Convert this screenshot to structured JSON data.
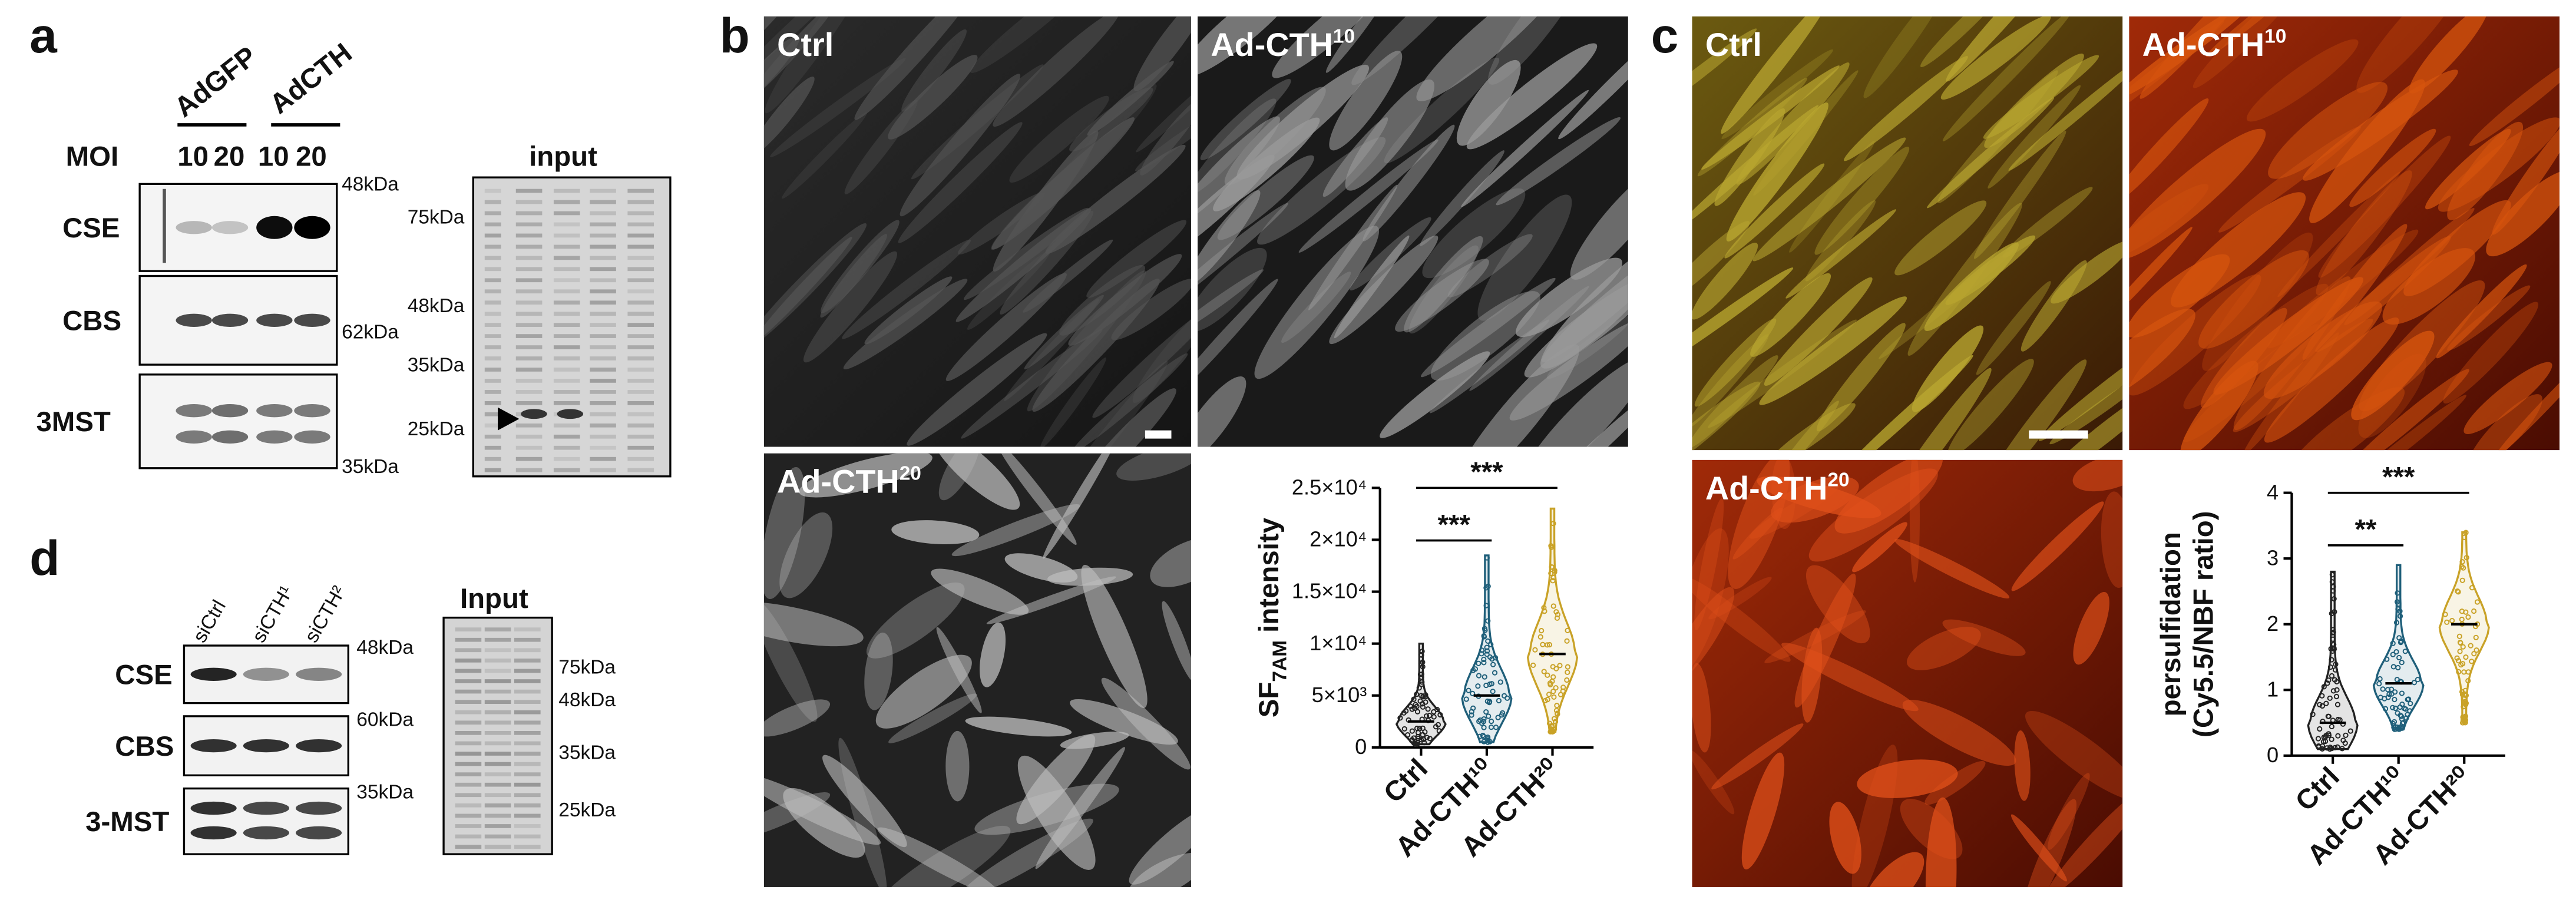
{
  "panels": {
    "a": {
      "label": "a",
      "groups": [
        "AdGFP",
        "AdCTH"
      ],
      "moi_label": "MOI",
      "moi": [
        "10",
        "20",
        "10",
        "20"
      ],
      "blots": [
        {
          "name": "CSE",
          "marker": "48kDa"
        },
        {
          "name": "CBS",
          "marker": "62kDa"
        },
        {
          "name": "3MST",
          "marker": "35kDa"
        }
      ],
      "input_title": "input",
      "input_markers": [
        "75kDa",
        "48kDa",
        "35kDa",
        "25kDa"
      ]
    },
    "b": {
      "label": "b",
      "images": [
        {
          "label": "Ctrl",
          "sup": ""
        },
        {
          "label": "Ad-CTH",
          "sup": "10"
        },
        {
          "label": "Ad-CTH",
          "sup": "20"
        }
      ]
    },
    "c": {
      "label": "c",
      "images": [
        {
          "label": "Ctrl",
          "sup": ""
        },
        {
          "label": "Ad-CTH",
          "sup": "10"
        },
        {
          "label": "Ad-CTH",
          "sup": "20"
        }
      ]
    },
    "d": {
      "label": "d",
      "lanes": [
        "siCtrl",
        "siCTH¹",
        "siCTH²"
      ],
      "blots": [
        {
          "name": "CSE",
          "marker": "48kDa"
        },
        {
          "name": "CBS",
          "marker": "60kDa"
        },
        {
          "name": "3-MST",
          "marker": "35kDa"
        }
      ],
      "input_title": "Input",
      "input_markers": [
        "75kDa",
        "48kDa",
        "35kDa",
        "25kDa"
      ]
    }
  },
  "chart_data": [
    {
      "type": "violin",
      "y_label": "SF",
      "y_label_sub": "7AM",
      "y_label_rest": " intensity",
      "categories": [
        "Ctrl",
        "Ad-CTH¹⁰",
        "Ad-CTH²⁰"
      ],
      "colors": [
        "#222222",
        "#1f5f7a",
        "#c9a227"
      ],
      "min": [
        300,
        500,
        1500
      ],
      "median": [
        2500,
        5000,
        9000
      ],
      "max": [
        10000,
        18500,
        23000
      ],
      "ylim": [
        0,
        25000
      ],
      "yticks": [
        0,
        {
          "value": 5000,
          "label": "5×10³"
        },
        {
          "value": 10000,
          "label": "1×10⁴"
        },
        {
          "value": 15000,
          "label": "1.5×10⁴"
        },
        {
          "value": 20000,
          "label": "2×10⁴"
        },
        {
          "value": 25000,
          "label": "2.5×10⁴"
        }
      ],
      "significance": [
        {
          "text": "***",
          "pair": [
            "Ctrl",
            "Ad-CTH¹⁰"
          ]
        },
        {
          "text": "***",
          "pair": [
            "Ctrl",
            "Ad-CTH²⁰"
          ]
        }
      ]
    },
    {
      "type": "violin",
      "y_label": "persulfidation",
      "y_label_2": "(Cy5.5/NBF ratio)",
      "categories": [
        "Ctrl",
        "Ad-CTH¹⁰",
        "Ad-CTH²⁰"
      ],
      "colors": [
        "#222222",
        "#1f5f7a",
        "#c9a227"
      ],
      "min": [
        0.1,
        0.4,
        0.5
      ],
      "median": [
        0.5,
        1.1,
        2.0
      ],
      "max": [
        2.8,
        2.9,
        3.4
      ],
      "ylim": [
        0,
        4
      ],
      "yticks": [
        0,
        1,
        2,
        3,
        4
      ],
      "significance": [
        {
          "text": "**",
          "pair": [
            "Ctrl",
            "Ad-CTH¹⁰"
          ]
        },
        {
          "text": "***",
          "pair": [
            "Ctrl",
            "Ad-CTH²⁰"
          ]
        }
      ]
    }
  ]
}
